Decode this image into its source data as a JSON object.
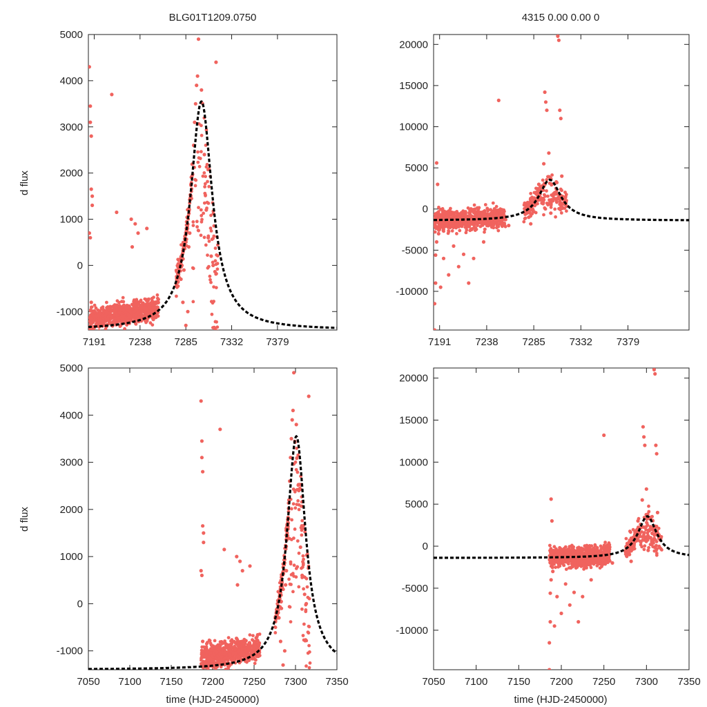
{
  "header": {
    "left": "BLG01T1209.0750",
    "right": "4315  0.00  0.00  0"
  },
  "axis_labels": {
    "ylabel": "d flux",
    "xlabel": "time (HJD-2450000)"
  },
  "colors": {
    "data_points": "#f0635e",
    "model_curve": "#000000"
  },
  "chart_data": [
    {
      "type": "scatter",
      "panel": "top-left",
      "xlim": [
        7185,
        7440
      ],
      "ylim": [
        -1400,
        5000
      ],
      "xticks": [
        7191,
        7238,
        7285,
        7332,
        7379
      ],
      "yticks": [
        -1000,
        0,
        1000,
        2000,
        3000,
        4000,
        5000
      ],
      "xlabel": "",
      "ylabel": "d flux",
      "model": {
        "t0": 7301,
        "peak": 3550,
        "baseline": -1400,
        "tE": 13.5
      },
      "series": [
        {
          "x": [
            7186,
            7187,
            7187,
            7188,
            7188,
            7189,
            7189,
            7186,
            7187,
            7190,
            7188,
            7193,
            7197,
            7205,
            7209,
            7214,
            7203,
            7229,
            7233,
            7245,
            7195,
            7200,
            7215,
            7221,
            7226,
            7240,
            7245,
            7248,
            7236,
            7230,
            7250,
            7210,
            7283,
            7288,
            7289,
            7290,
            7292,
            7293,
            7294,
            7295,
            7296,
            7297,
            7298,
            7301,
            7304,
            7306,
            7308,
            7311,
            7313,
            7316,
            7280,
            7282,
            7285,
            7287
          ],
          "y": [
            4300,
            3450,
            3100,
            2800,
            1650,
            1500,
            1300,
            700,
            600,
            -1100,
            -800,
            -1200,
            -1300,
            -900,
            3700,
            1150,
            -1000,
            1000,
            900,
            800,
            -1300,
            -1200,
            -1150,
            -1100,
            -1200,
            -1000,
            -950,
            -900,
            700,
            400,
            -800,
            -1300,
            -100,
            400,
            700,
            1500,
            2200,
            2600,
            3100,
            3500,
            3900,
            4100,
            4900,
            3800,
            2400,
            1200,
            600,
            200,
            0,
            4400,
            -300,
            -800,
            -1300,
            -1000
          ]
        }
      ]
    },
    {
      "type": "scatter",
      "panel": "top-right",
      "xlim": [
        7185,
        7440
      ],
      "ylim": [
        -14700,
        21200
      ],
      "xticks": [
        7191,
        7238,
        7285,
        7332,
        7379
      ],
      "yticks": [
        -10000,
        -5000,
        0,
        5000,
        10000,
        15000,
        20000
      ],
      "model": {
        "t0": 7301,
        "peak": 3550,
        "baseline": -1400,
        "tE": 13.5
      },
      "series": [
        {
          "x": [
            7186,
            7186,
            7187,
            7187,
            7188,
            7188,
            7189,
            7190,
            7192,
            7195,
            7200,
            7205,
            7210,
            7215,
            7220,
            7225,
            7235,
            7250,
            7260,
            7285,
            7290,
            7295,
            7296,
            7297,
            7298,
            7300,
            7302,
            7304,
            7306,
            7309,
            7310,
            7311,
            7312,
            7313,
            7280,
            7282
          ],
          "y": [
            -14700,
            -11500,
            -9000,
            -5600,
            -4000,
            5600,
            3000,
            -3000,
            -9500,
            -6000,
            -8000,
            -4500,
            -7000,
            -5500,
            -9000,
            -6000,
            -4000,
            13200,
            -2000,
            1000,
            3000,
            5500,
            14200,
            13000,
            12000,
            6800,
            -500,
            1000,
            2000,
            21000,
            20500,
            12000,
            11000,
            4000,
            -1000,
            -1800
          ]
        }
      ]
    },
    {
      "type": "scatter",
      "panel": "bottom-left",
      "xlim": [
        7050,
        7350
      ],
      "ylim": [
        -1400,
        5000
      ],
      "xticks": [
        7050,
        7100,
        7150,
        7200,
        7250,
        7300,
        7350
      ],
      "yticks": [
        -1000,
        0,
        1000,
        2000,
        3000,
        4000,
        5000
      ],
      "xlabel": "time (HJD-2450000)",
      "ylabel": "d flux",
      "model": {
        "t0": 7301,
        "peak": 3550,
        "baseline": -1400,
        "tE": 13.5
      },
      "series": [
        {
          "x": [
            7186,
            7187,
            7187,
            7188,
            7188,
            7189,
            7189,
            7186,
            7187,
            7190,
            7188,
            7193,
            7197,
            7205,
            7209,
            7214,
            7203,
            7229,
            7233,
            7245,
            7195,
            7200,
            7215,
            7221,
            7226,
            7240,
            7245,
            7248,
            7236,
            7230,
            7250,
            7210,
            7283,
            7288,
            7289,
            7290,
            7292,
            7293,
            7294,
            7295,
            7296,
            7297,
            7298,
            7301,
            7304,
            7306,
            7308,
            7311,
            7313,
            7316,
            7280,
            7282,
            7285,
            7287
          ],
          "y": [
            4300,
            3450,
            3100,
            2800,
            1650,
            1500,
            1300,
            700,
            600,
            -1100,
            -800,
            -1200,
            -1300,
            -900,
            3700,
            1150,
            -1000,
            1000,
            900,
            800,
            -1300,
            -1200,
            -1150,
            -1100,
            -1200,
            -1000,
            -950,
            -900,
            700,
            400,
            -800,
            -1300,
            -100,
            400,
            700,
            1500,
            2200,
            2600,
            3100,
            3500,
            3900,
            4100,
            4900,
            3800,
            2400,
            1200,
            600,
            200,
            0,
            4400,
            -300,
            -800,
            -1300,
            -1000
          ]
        }
      ]
    },
    {
      "type": "scatter",
      "panel": "bottom-right",
      "xlim": [
        7050,
        7350
      ],
      "ylim": [
        -14700,
        21200
      ],
      "xticks": [
        7050,
        7100,
        7150,
        7200,
        7250,
        7300,
        7350
      ],
      "yticks": [
        -10000,
        -5000,
        0,
        5000,
        10000,
        15000,
        20000
      ],
      "xlabel": "time (HJD-2450000)",
      "model": {
        "t0": 7301,
        "peak": 3550,
        "baseline": -1400,
        "tE": 13.5
      },
      "series": [
        {
          "x": [
            7186,
            7186,
            7187,
            7187,
            7188,
            7188,
            7189,
            7190,
            7192,
            7195,
            7200,
            7205,
            7210,
            7215,
            7220,
            7225,
            7235,
            7250,
            7260,
            7285,
            7290,
            7295,
            7296,
            7297,
            7298,
            7300,
            7302,
            7304,
            7306,
            7309,
            7310,
            7311,
            7312,
            7313,
            7280,
            7282
          ],
          "y": [
            -14700,
            -11500,
            -9000,
            -5600,
            -4000,
            5600,
            3000,
            -3000,
            -9500,
            -6000,
            -8000,
            -4500,
            -7000,
            -5500,
            -9000,
            -6000,
            -4000,
            13200,
            -2000,
            1000,
            3000,
            5500,
            14200,
            13000,
            12000,
            6800,
            -500,
            1000,
            2000,
            21000,
            20500,
            12000,
            11000,
            4000,
            -1000,
            -1800
          ]
        }
      ]
    }
  ]
}
